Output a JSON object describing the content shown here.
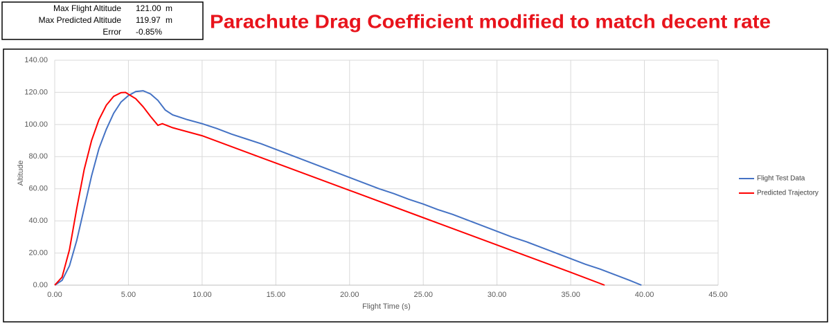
{
  "summary": {
    "rows": [
      [
        "Max Flight Altitude",
        "121.00",
        "m"
      ],
      [
        "Max Predicted Altitude",
        "119.97",
        "m"
      ],
      [
        "Error",
        "-0.85%"
      ]
    ]
  },
  "chart_data": {
    "type": "line",
    "title": "Parachute Drag Coefficient modified to match decent rate",
    "x_label": "Flight Time (s)",
    "y_label": "Altitude",
    "xlim": [
      0,
      45
    ],
    "ylim": [
      0,
      140
    ],
    "xticks": [
      {
        "value": 0,
        "label": "0.00"
      },
      {
        "value": 5,
        "label": "5.00"
      },
      {
        "value": 10,
        "label": "10.00"
      },
      {
        "value": 15,
        "label": "15.00"
      },
      {
        "value": 20,
        "label": "20.00"
      },
      {
        "value": 25,
        "label": "25.00"
      },
      {
        "value": 30,
        "label": "30.00"
      },
      {
        "value": 35,
        "label": "35.00"
      },
      {
        "value": 40,
        "label": "40.00"
      },
      {
        "value": 45,
        "label": "45.00"
      }
    ],
    "yticks": [
      {
        "value": 0,
        "label": "0.00"
      },
      {
        "value": 20,
        "label": "20.00"
      },
      {
        "value": 40,
        "label": "40.00"
      },
      {
        "value": 60,
        "label": "60.00"
      },
      {
        "value": 80,
        "label": "80.00"
      },
      {
        "value": 100,
        "label": "100.00"
      },
      {
        "value": 120,
        "label": "120.00"
      },
      {
        "value": 140,
        "label": "140.00"
      }
    ],
    "grid": true,
    "legend": "right",
    "series": [
      {
        "name": "Flight Test Data",
        "color": "#4472c4",
        "x": [
          0,
          0.5,
          1,
          1.5,
          2,
          2.5,
          3,
          3.5,
          4,
          4.5,
          5,
          5.5,
          6,
          6.5,
          7,
          7.5,
          8,
          9,
          10,
          11,
          12,
          13,
          14,
          15,
          16,
          17,
          18,
          19,
          20,
          21,
          22,
          23,
          24,
          25,
          26,
          27,
          28,
          29,
          30,
          31,
          32,
          33,
          34,
          35,
          36,
          37,
          38,
          39,
          39.8
        ],
        "values": [
          0,
          3,
          12,
          28,
          48,
          68,
          85,
          97,
          107,
          114,
          118,
          120.5,
          121,
          119,
          115,
          109,
          106,
          103,
          100.5,
          97.5,
          94,
          91,
          88,
          84.5,
          81,
          77.5,
          74,
          70.5,
          67,
          63.5,
          60,
          57,
          53.5,
          50.5,
          47,
          44,
          40.5,
          37,
          33.5,
          30,
          27,
          23.5,
          20,
          16.5,
          13,
          10,
          6.5,
          3,
          0
        ]
      },
      {
        "name": "Predicted Trajectory",
        "color": "#ff0000",
        "x": [
          0,
          0.5,
          1,
          1.5,
          2,
          2.5,
          3,
          3.5,
          4,
          4.5,
          4.8,
          5.5,
          6,
          6.5,
          7,
          7.3,
          8,
          10,
          15,
          20,
          25,
          30,
          35,
          37.3
        ],
        "values": [
          0,
          5,
          22,
          48,
          72,
          90,
          103,
          112,
          117.5,
          119.8,
          119.97,
          116,
          111,
          105,
          99.5,
          100.5,
          98,
          93,
          76,
          59,
          42,
          25,
          8,
          0
        ]
      }
    ]
  }
}
